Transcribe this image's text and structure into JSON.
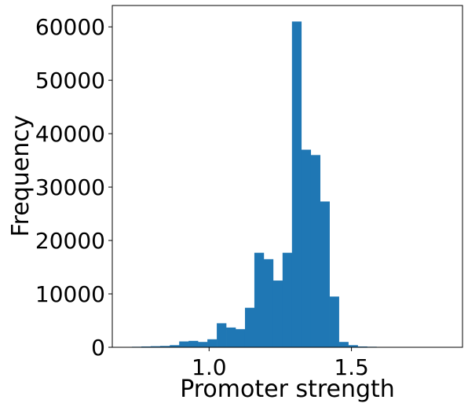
{
  "chart_data": {
    "type": "bar",
    "title": "",
    "xlabel": "Promoter strength",
    "ylabel": "Frequency",
    "xlim": [
      0.66,
      1.89
    ],
    "ylim": [
      0,
      64000
    ],
    "xticks": [
      1.0,
      1.5
    ],
    "xtick_labels": [
      "1.0",
      "1.5"
    ],
    "yticks": [
      0,
      10000,
      20000,
      30000,
      40000,
      50000,
      60000
    ],
    "ytick_labels": [
      "0",
      "10000",
      "20000",
      "30000",
      "40000",
      "50000",
      "60000"
    ],
    "grid": false,
    "bar_color": "#1f77b4",
    "bin_edges": [
      0.696,
      0.729,
      0.762,
      0.795,
      0.828,
      0.862,
      0.895,
      0.928,
      0.961,
      0.994,
      1.027,
      1.06,
      1.093,
      1.126,
      1.159,
      1.192,
      1.225,
      1.258,
      1.291,
      1.324,
      1.357,
      1.39,
      1.423,
      1.456,
      1.489,
      1.522,
      1.555,
      1.588,
      1.621,
      1.654,
      1.687,
      1.72,
      1.753,
      1.786,
      1.819
    ],
    "counts": [
      50,
      100,
      150,
      200,
      250,
      400,
      1100,
      1200,
      1000,
      1500,
      4500,
      3700,
      3400,
      7400,
      17700,
      16500,
      12500,
      17700,
      61000,
      37000,
      36000,
      27300,
      9500,
      1000,
      400,
      150,
      100,
      50,
      30,
      20,
      10,
      10,
      5,
      5
    ]
  }
}
